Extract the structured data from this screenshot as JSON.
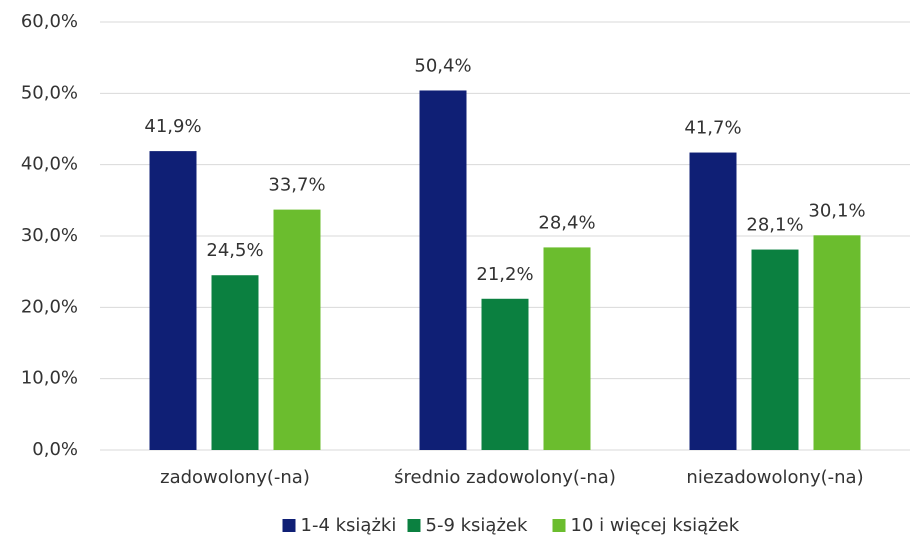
{
  "chart_data": {
    "type": "bar",
    "categories": [
      "zadowolony(-na)",
      "średnio zadowolony(-na)",
      "niezadowolony(-na)"
    ],
    "series": [
      {
        "name": "1-4 książki",
        "color": "#0f1f75",
        "values": [
          41.9,
          50.4,
          41.7
        ],
        "value_labels": [
          "41,9%",
          "50,4%",
          "41,7%"
        ]
      },
      {
        "name": "5-9 książek",
        "color": "#0b8040",
        "values": [
          24.5,
          21.2,
          28.1
        ],
        "value_labels": [
          "24,5%",
          "21,2%",
          "28,1%"
        ]
      },
      {
        "name": "10 i więcej książek",
        "color": "#6bbd2e",
        "values": [
          33.7,
          28.4,
          30.1
        ],
        "value_labels": [
          "33,7%",
          "28,4%",
          "30,1%"
        ]
      }
    ],
    "ylim": [
      0,
      60
    ],
    "yticks": [
      {
        "value": 0,
        "label": "0,0%"
      },
      {
        "value": 10,
        "label": "10,0%"
      },
      {
        "value": 20,
        "label": "20,0%"
      },
      {
        "value": 30,
        "label": "30,0%"
      },
      {
        "value": 40,
        "label": "40,0%"
      },
      {
        "value": 50,
        "label": "50,0%"
      },
      {
        "value": 60,
        "label": "60,0%"
      }
    ],
    "grid": true,
    "legend": "bottom"
  }
}
